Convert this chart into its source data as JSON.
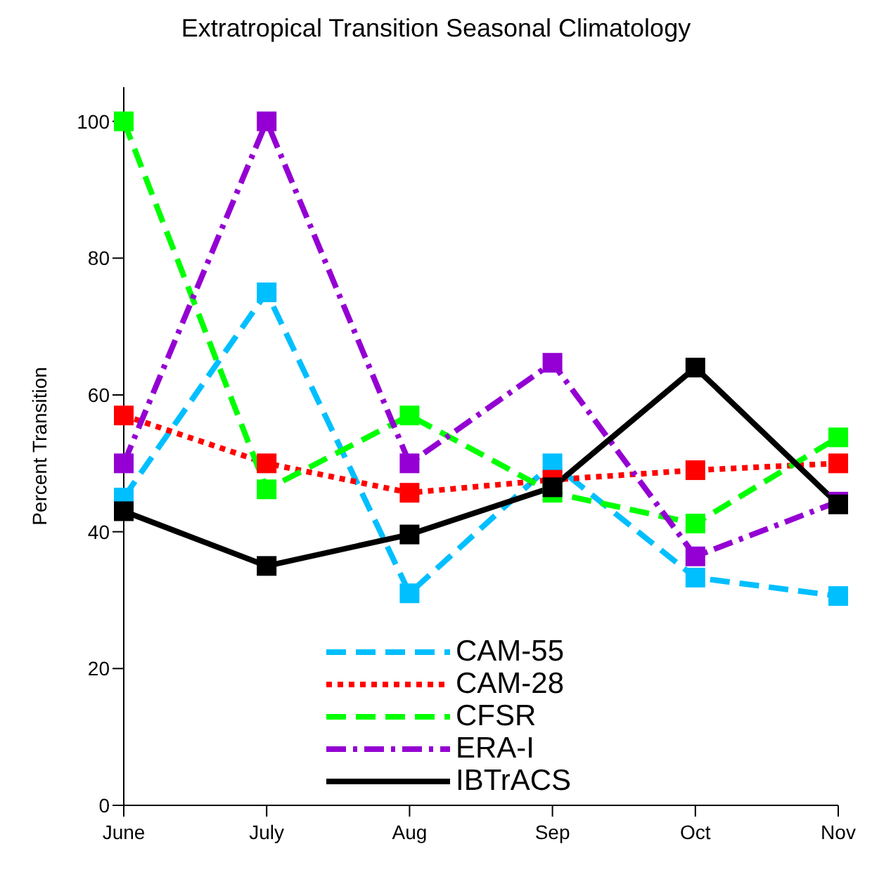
{
  "chart_data": {
    "type": "line",
    "title": "Extratropical Transition Seasonal Climatology",
    "ylabel": "Percent Transition",
    "categories": [
      "June",
      "July",
      "Aug",
      "Sep",
      "Oct",
      "Nov"
    ],
    "series": [
      {
        "name": "CAM-55",
        "color": "#00bfff",
        "line_style": "dashed",
        "values": [
          45,
          75,
          31,
          50,
          33.3,
          30.6
        ]
      },
      {
        "name": "CAM-28",
        "color": "#ff0000",
        "line_style": "dotted",
        "values": [
          57,
          50,
          45.7,
          47.6,
          49,
          50
        ]
      },
      {
        "name": "CFSR",
        "color": "#00ff00",
        "line_style": "dashed",
        "values": [
          100,
          46.2,
          57,
          45.7,
          41.2,
          53.8
        ]
      },
      {
        "name": "ERA-I",
        "color": "#9400d3",
        "line_style": "dashdot",
        "values": [
          50,
          100,
          50,
          64.7,
          36.4,
          44.4
        ]
      },
      {
        "name": "IBTrACS",
        "color": "#000000",
        "line_style": "solid",
        "values": [
          43,
          35,
          39.6,
          46.5,
          64,
          44
        ]
      }
    ],
    "ylim": [
      0,
      105
    ],
    "yticks": [
      0,
      20,
      40,
      60,
      80,
      100
    ],
    "grid": false,
    "legend": "bottom",
    "marker": "square"
  }
}
